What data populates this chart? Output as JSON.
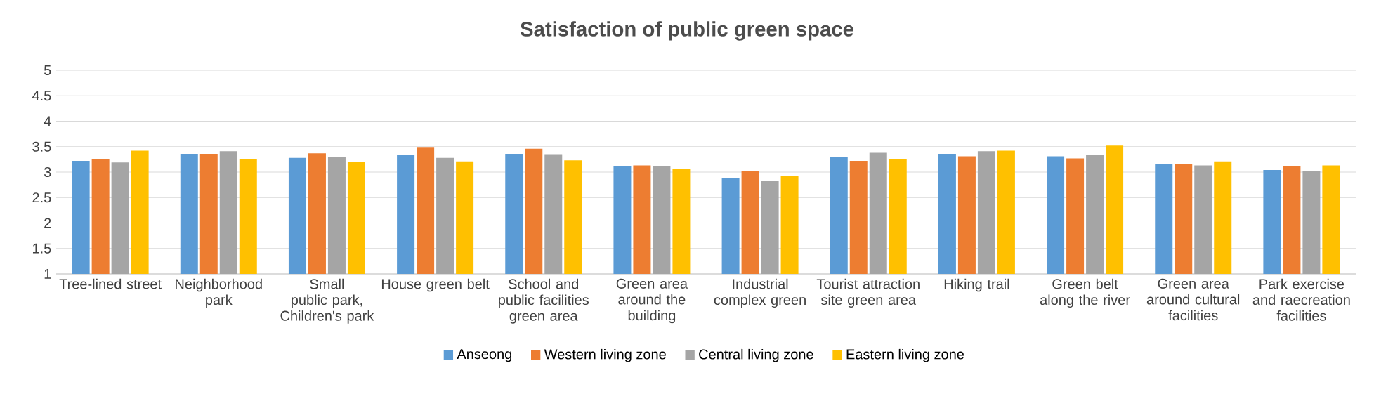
{
  "chart_data": {
    "type": "bar",
    "title": "Satisfaction of public green space",
    "categories": [
      "Tree-lined street",
      "Neighborhood park",
      "Small public park, Children's park",
      "House green belt",
      "School and public facilities green area",
      "Green area around the building",
      "Industrial complex green",
      "Tourist attraction site green area",
      "Hiking trail",
      "Green belt along the river",
      "Green area around cultural facilities",
      "Park exercise and raecreation facilities"
    ],
    "series": [
      {
        "name": "Anseong",
        "color": "#5b9bd5",
        "values": [
          3.22,
          3.36,
          3.28,
          3.33,
          3.36,
          3.11,
          2.89,
          3.3,
          3.36,
          3.31,
          3.15,
          3.04
        ]
      },
      {
        "name": "Western living zone",
        "color": "#ed7d31",
        "values": [
          3.26,
          3.36,
          3.37,
          3.48,
          3.46,
          3.13,
          3.02,
          3.22,
          3.31,
          3.27,
          3.16,
          3.11
        ]
      },
      {
        "name": "Central living zone",
        "color": "#a5a5a5",
        "values": [
          3.19,
          3.41,
          3.3,
          3.28,
          3.35,
          3.11,
          2.83,
          3.38,
          3.41,
          3.33,
          3.13,
          3.02
        ]
      },
      {
        "name": "Eastern living zone",
        "color": "#ffc000",
        "values": [
          3.42,
          3.26,
          3.2,
          3.21,
          3.23,
          3.06,
          2.92,
          3.26,
          3.42,
          3.52,
          3.21,
          3.13
        ]
      }
    ],
    "ylim": [
      1,
      5
    ],
    "yticks": [
      1,
      1.5,
      2,
      2.5,
      3,
      3.5,
      4,
      4.5,
      5
    ],
    "grid": "y",
    "legend": "bottom"
  }
}
